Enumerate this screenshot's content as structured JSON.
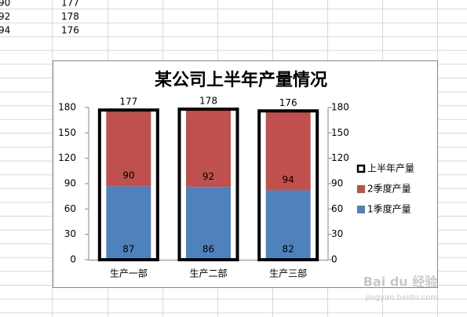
{
  "sheet": {
    "rows": [
      [
        90,
        177
      ],
      [
        92,
        178
      ],
      [
        94,
        176
      ]
    ]
  },
  "chart_data": {
    "type": "bar",
    "stacked": true,
    "title": "某公司上半年产量情况",
    "categories": [
      "生产一部",
      "生产二部",
      "生产三部"
    ],
    "series": [
      {
        "name": "1季度产量",
        "color": "#4f81bd",
        "values": [
          87,
          86,
          82
        ]
      },
      {
        "name": "2季度产量",
        "color": "#c0504d",
        "values": [
          90,
          92,
          94
        ]
      },
      {
        "name": "上半年产量",
        "color": "#000000",
        "outline": true,
        "axis": "y2",
        "values": [
          177,
          178,
          176
        ]
      }
    ],
    "ylim": [
      0,
      180
    ],
    "yticks": [
      0,
      30,
      60,
      90,
      120,
      150,
      180
    ],
    "y2lim": [
      0,
      180
    ],
    "y2ticks": [
      0,
      30,
      60,
      90,
      120,
      150,
      180
    ],
    "legend": "right"
  },
  "watermark": {
    "brand": "Bai du 经验",
    "url": "jingyan.baidu.com"
  }
}
